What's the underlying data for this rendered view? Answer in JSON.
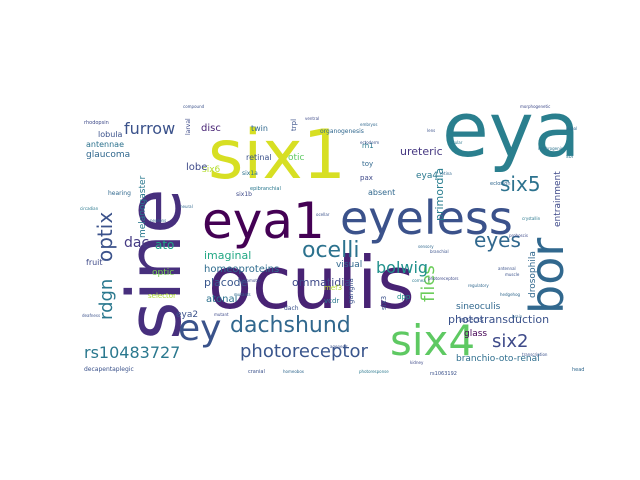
{
  "wordcloud": {
    "background": "#ffffff",
    "words": [
      {
        "text": "eya",
        "color": "#2a7f8e"
      },
      {
        "text": "six1",
        "color": "#d7df23"
      },
      {
        "text": "sine",
        "color": "#472f7d"
      },
      {
        "text": "oculis",
        "color": "#482374"
      },
      {
        "text": "eya1",
        "color": "#440154"
      },
      {
        "text": "eyeless",
        "color": "#3b528b"
      },
      {
        "text": "bor",
        "color": "#31688e"
      },
      {
        "text": "six4",
        "color": "#5ec962"
      },
      {
        "text": "ey",
        "color": "#3a538b"
      },
      {
        "text": "dachshund",
        "color": "#31688e"
      },
      {
        "text": "ocelli",
        "color": "#2c728e"
      },
      {
        "text": "photoreceptor",
        "color": "#39558c"
      },
      {
        "text": "rs10483727",
        "color": "#2a788e"
      },
      {
        "text": "optix",
        "color": "#3b528b"
      },
      {
        "text": "eyes",
        "color": "#31688e"
      },
      {
        "text": "six5",
        "color": "#2c728e"
      },
      {
        "text": "six2",
        "color": "#3e4a89"
      },
      {
        "text": "flies",
        "color": "#6ccd5a"
      },
      {
        "text": "bolwig",
        "color": "#21918c"
      },
      {
        "text": "rdgn",
        "color": "#2a788e"
      },
      {
        "text": "furrow",
        "color": "#3b528b"
      },
      {
        "text": "dac",
        "color": "#443a83"
      },
      {
        "text": "ommatidia",
        "color": "#3e4989"
      },
      {
        "text": "homeoproteins",
        "color": "#2f6c8e"
      },
      {
        "text": "placode",
        "color": "#39568c"
      },
      {
        "text": "imaginal",
        "color": "#22a884"
      },
      {
        "text": "atonal",
        "color": "#2c718e"
      },
      {
        "text": "phototransduction",
        "color": "#3b528b"
      },
      {
        "text": "branchio-oto-renal",
        "color": "#2e6e8e"
      },
      {
        "text": "optic",
        "color": "#7ad151"
      },
      {
        "text": "visual",
        "color": "#31688e"
      },
      {
        "text": "ureteric",
        "color": "#453781"
      },
      {
        "text": "eya4",
        "color": "#2a788e"
      },
      {
        "text": "eya2",
        "color": "#3b528b"
      },
      {
        "text": "ato",
        "color": "#20a386"
      },
      {
        "text": "six6",
        "color": "#b5de2b"
      },
      {
        "text": "primordia",
        "color": "#287d8e"
      },
      {
        "text": "lobe",
        "color": "#3e4a89"
      },
      {
        "text": "retinal",
        "color": "#3b528b"
      },
      {
        "text": "otic",
        "color": "#5ec962"
      },
      {
        "text": "glaucoma",
        "color": "#31688e"
      },
      {
        "text": "lobula",
        "color": "#3b528b"
      },
      {
        "text": "antennae",
        "color": "#2c728e"
      },
      {
        "text": "melanogaster",
        "color": "#2a788e"
      },
      {
        "text": "drosophila",
        "color": "#31688e"
      },
      {
        "text": "entrainment",
        "color": "#3e4989"
      },
      {
        "text": "sineoculis",
        "color": "#31688e"
      },
      {
        "text": "glass",
        "color": "#440154"
      },
      {
        "text": "insects",
        "color": "#3b528b"
      },
      {
        "text": "fruit",
        "color": "#3e4a89"
      },
      {
        "text": "disc",
        "color": "#482475"
      },
      {
        "text": "twin",
        "color": "#31688e"
      },
      {
        "text": "rh1",
        "color": "#2a788e"
      },
      {
        "text": "pax",
        "color": "#3e4989"
      },
      {
        "text": "toy",
        "color": "#31688e"
      },
      {
        "text": "dpp",
        "color": "#21918c"
      },
      {
        "text": "six3",
        "color": "#3b528b"
      },
      {
        "text": "six1a",
        "color": "#2c728e"
      },
      {
        "text": "six1b",
        "color": "#3e4a89"
      },
      {
        "text": "selector",
        "color": "#addc30"
      },
      {
        "text": "vcdr",
        "color": "#2a788e"
      },
      {
        "text": "mef3",
        "color": "#b5de2b"
      },
      {
        "text": "ganglia",
        "color": "#3b528b"
      },
      {
        "text": "absent",
        "color": "#31688e"
      },
      {
        "text": "larval",
        "color": "#3e4a89"
      },
      {
        "text": "organogenesis",
        "color": "#31688e"
      },
      {
        "text": "trpl",
        "color": "#3b528b"
      },
      {
        "text": "epibranchial",
        "color": "#2a788e"
      },
      {
        "text": "hearing",
        "color": "#31688e"
      },
      {
        "text": "decapentaplegic",
        "color": "#3b528b"
      },
      {
        "text": "eclosion",
        "color": "#31688e"
      },
      {
        "text": "rhodopsin",
        "color": "#3e4a89"
      },
      {
        "text": "rs1063192",
        "color": "#3b528b"
      },
      {
        "text": "head",
        "color": "#31688e"
      },
      {
        "text": "sol",
        "color": "#2a788e"
      },
      {
        "text": "dach",
        "color": "#3b528b"
      },
      {
        "text": "sensory",
        "color": "#31688e"
      },
      {
        "text": "morphogenetic",
        "color": "#3e4a89"
      },
      {
        "text": "cranial",
        "color": "#3b528b"
      },
      {
        "text": "homeobox",
        "color": "#31688e"
      },
      {
        "text": "photoresponse",
        "color": "#2a788e"
      },
      {
        "text": "hedgehog",
        "color": "#31688e"
      },
      {
        "text": "branchial",
        "color": "#3b528b"
      },
      {
        "text": "ventral",
        "color": "#3e4a89"
      },
      {
        "text": "embryos",
        "color": "#31688e"
      },
      {
        "text": "ocular",
        "color": "#2a788e"
      },
      {
        "text": "agenesis",
        "color": "#3b528b"
      },
      {
        "text": "pupal",
        "color": "#31688e"
      },
      {
        "text": "proboscis",
        "color": "#3e4a89"
      },
      {
        "text": "nephrogenic",
        "color": "#2c728e"
      },
      {
        "text": "lens",
        "color": "#3b528b"
      },
      {
        "text": "retina",
        "color": "#31688e"
      },
      {
        "text": "photoreceptors",
        "color": "#3e4a89"
      },
      {
        "text": "compound",
        "color": "#3b528b"
      },
      {
        "text": "neurons",
        "color": "#31688e"
      },
      {
        "text": "circadian",
        "color": "#2a788e"
      },
      {
        "text": "ectoderm",
        "color": "#3b528b"
      },
      {
        "text": "mutant",
        "color": "#3e4a89"
      },
      {
        "text": "mutants",
        "color": "#31688e"
      },
      {
        "text": "ocellar",
        "color": "#3b528b"
      },
      {
        "text": "cornea",
        "color": "#2a788e"
      },
      {
        "text": "antennal",
        "color": "#3b528b"
      },
      {
        "text": "brain",
        "color": "#31688e"
      },
      {
        "text": "kidney",
        "color": "#3e4a89"
      },
      {
        "text": "muscle",
        "color": "#3b528b"
      },
      {
        "text": "neural",
        "color": "#31688e"
      },
      {
        "text": "crystallin",
        "color": "#2a788e"
      },
      {
        "text": "deafness",
        "color": "#3b528b"
      },
      {
        "text": "regulatory",
        "color": "#31688e"
      },
      {
        "text": "optomotor",
        "color": "#3e4a89"
      },
      {
        "text": "transcription",
        "color": "#3b528b"
      }
    ]
  }
}
